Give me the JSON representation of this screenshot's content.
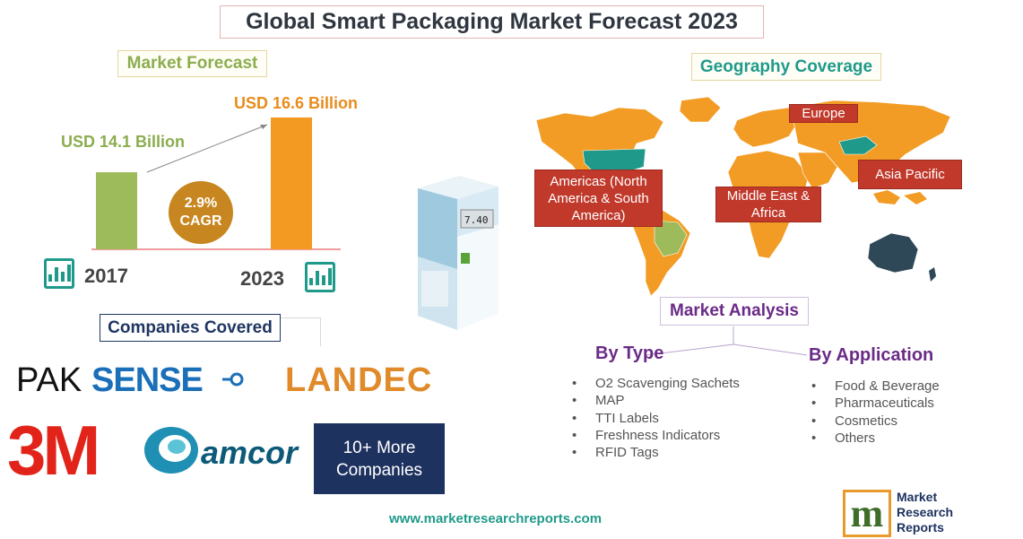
{
  "title": "Global Smart Packaging Market Forecast 2023",
  "market_forecast": {
    "label": "Market Forecast",
    "cagr_value": "2.9%",
    "cagr_label": "CAGR",
    "colors": {
      "bar_2017": "#9dbb5a",
      "bar_2023": "#f39a22",
      "cagr": "#c7861f"
    }
  },
  "chart_data": {
    "type": "bar",
    "categories": [
      "2017",
      "2023"
    ],
    "values": [
      14.1,
      16.6
    ],
    "value_labels": [
      "USD 14.1 Billion",
      "USD 16.6 Billion"
    ],
    "title": "",
    "xlabel": "",
    "ylabel": ""
  },
  "geography": {
    "label": "Geography Coverage",
    "regions": [
      {
        "name": "Americas (North America & South America)"
      },
      {
        "name": "Europe"
      },
      {
        "name": "Asia Pacific"
      },
      {
        "name": "Middle East & Africa"
      }
    ],
    "colors": {
      "land": "#f29c25",
      "north_america": "#1f9a8a",
      "south_america": "#9dbb5a",
      "asia": "#1f9a8a",
      "australia": "#2f4858",
      "region_box": "#c0392b"
    }
  },
  "market_analysis": {
    "label": "Market Analysis",
    "by_type": {
      "label": "By Type",
      "items": [
        "O2 Scavenging Sachets",
        "MAP",
        "TTI Labels",
        "Freshness Indicators",
        "RFID Tags"
      ]
    },
    "by_application": {
      "label": "By Application",
      "items": [
        "Food & Beverage",
        "Pharmaceuticals",
        "Cosmetics",
        "Others"
      ]
    }
  },
  "companies": {
    "label": "Companies Covered",
    "logos": [
      "PAKSENSE",
      "LANDEC",
      "3M",
      "amcor"
    ],
    "more": "10+ More Companies"
  },
  "footer": {
    "website": "www.marketresearchreports.com",
    "brand_mark": "m",
    "brand_lines": [
      "Market",
      "Research",
      "Reports"
    ]
  }
}
